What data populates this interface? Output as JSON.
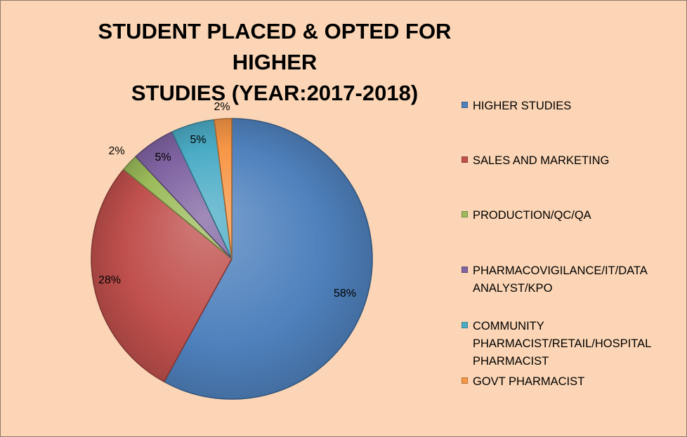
{
  "chart_data": {
    "type": "pie",
    "title": "STUDENT PLACED & OPTED FOR HIGHER STUDIES  (YEAR:2017-2018)",
    "title_lines": [
      "STUDENT PLACED & OPTED FOR HIGHER",
      "STUDIES  (YEAR:2017-2018)"
    ],
    "legend_position": "right",
    "slices": [
      {
        "label": "HIGHER STUDIES",
        "value": 58,
        "display": "58%",
        "color": "#4F81BD"
      },
      {
        "label": "SALES AND MARKETING",
        "value": 28,
        "display": "28%",
        "color": "#C0504D"
      },
      {
        "label": "PRODUCTION/QC/QA",
        "value": 2,
        "display": "2%",
        "color": "#9BBB59"
      },
      {
        "label": "PHARMACOVIGILANCE/IT/DATA ANALYST/KPO",
        "value": 5,
        "display": "5%",
        "color": "#8064A2"
      },
      {
        "label": "COMMUNITY PHARMACIST/RETAIL/HOSPITAL PHARMACIST",
        "value": 5,
        "display": "5%",
        "color": "#4BACC6"
      },
      {
        "label": "GOVT PHARMACIST",
        "value": 2,
        "display": "2%",
        "color": "#F79646"
      }
    ]
  },
  "colors": {
    "background": "#FBD5B5"
  }
}
